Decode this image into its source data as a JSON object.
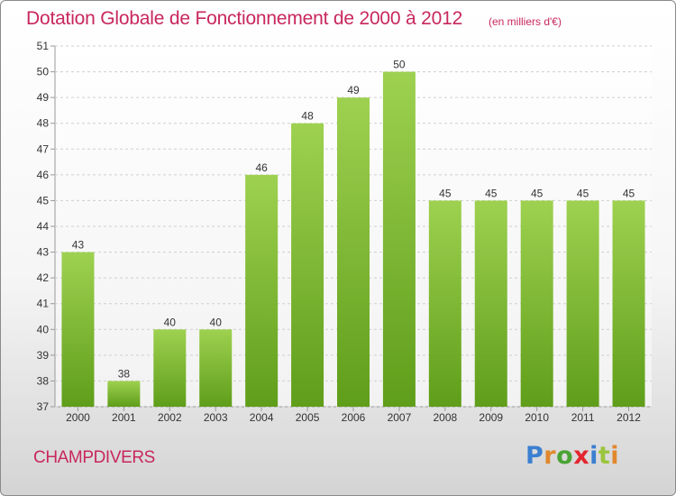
{
  "title": "Dotation Globale de Fonctionnement de 2000 à 2012",
  "unit_label": "(en milliers d'€)",
  "commune": "CHAMPDIVERS",
  "logo": {
    "text": "Proxiti",
    "letters": [
      "P",
      "r",
      "o",
      "x",
      "i",
      "t",
      "i"
    ]
  },
  "colors": {
    "title": "#c8275d",
    "bar_top": "#9ed150",
    "bar_bottom": "#5f9e1a",
    "grid": "#cfcfcf",
    "axis_text": "#333333"
  },
  "chart_data": {
    "type": "bar",
    "categories": [
      "2000",
      "2001",
      "2002",
      "2003",
      "2004",
      "2005",
      "2006",
      "2007",
      "2008",
      "2009",
      "2010",
      "2011",
      "2012"
    ],
    "values": [
      43,
      38,
      40,
      40,
      46,
      48,
      49,
      50,
      45,
      45,
      45,
      45,
      45
    ],
    "data_labels": [
      "43",
      "38",
      "40",
      "40",
      "46",
      "48",
      "49",
      "50",
      "45",
      "45",
      "45",
      "45",
      "45"
    ],
    "yticks": [
      "37",
      "38",
      "39",
      "40",
      "41",
      "42",
      "43",
      "44",
      "45",
      "46",
      "47",
      "48",
      "49",
      "50",
      "51"
    ],
    "ylim": [
      37,
      51
    ],
    "grid": true,
    "xlabel": "",
    "ylabel": ""
  }
}
